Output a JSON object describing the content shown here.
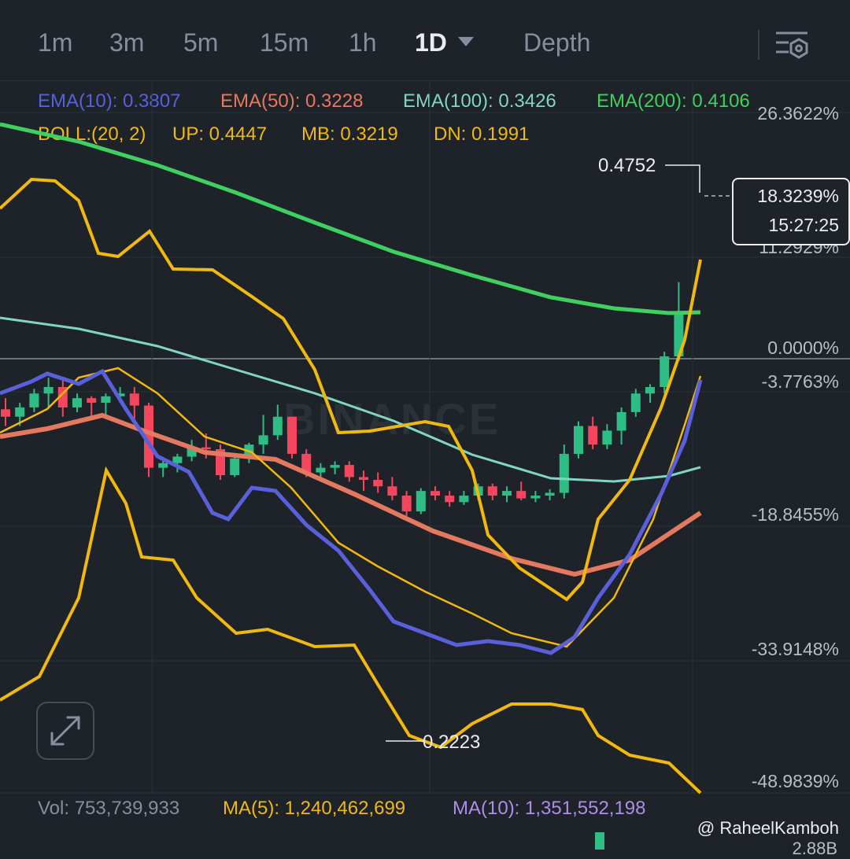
{
  "timeframes": [
    {
      "label": "1m",
      "active": false
    },
    {
      "label": "3m",
      "active": false
    },
    {
      "label": "5m",
      "active": false
    },
    {
      "label": "15m",
      "active": false
    },
    {
      "label": "1h",
      "active": false
    },
    {
      "label": "1D",
      "active": true
    },
    {
      "label": "Depth",
      "active": false
    }
  ],
  "indicators": {
    "ema10": {
      "label": "EMA(10): 0.3807",
      "color": "#5a5fdc"
    },
    "ema50": {
      "label": "EMA(50): 0.3228",
      "color": "#e4795f"
    },
    "ema100": {
      "label": "EMA(100): 0.3426",
      "color": "#7fd6c3"
    },
    "ema200": {
      "label": "EMA(200): 0.4106",
      "color": "#3ed15f"
    },
    "boll": {
      "name": "BOLL:(20, 2)",
      "up": "UP: 0.4447",
      "mb": "MB: 0.3219",
      "dn": "DN: 0.1991",
      "color": "#f0b90b"
    }
  },
  "price_box": {
    "change": "18.3239%",
    "countdown": "15:27:25"
  },
  "watermark": "BINANCE",
  "volume": {
    "vol": "Vol: 753,739,933",
    "ma5": "MA(5): 1,240,462,699",
    "ma10": "MA(10): 1,351,552,198",
    "axis_partial": "2.88B"
  },
  "brand": "@ RaheelKamboh",
  "chart_data": {
    "type": "candlestick",
    "y_axis_ticks": [
      "26.3622%",
      "11.2929%",
      "0.0000%",
      "-3.7763%",
      "-18.8455%",
      "-33.9148%",
      "-48.9839%"
    ],
    "annotations": {
      "high": "0.4752",
      "low": "0.2223"
    },
    "colors": {
      "up": "#2ebd85",
      "down": "#f6465d"
    },
    "candles": [
      [
        0.338,
        0.35,
        0.32,
        0.33
      ],
      [
        0.33,
        0.345,
        0.32,
        0.34
      ],
      [
        0.34,
        0.36,
        0.335,
        0.355
      ],
      [
        0.355,
        0.372,
        0.34,
        0.362
      ],
      [
        0.362,
        0.372,
        0.33,
        0.34
      ],
      [
        0.34,
        0.355,
        0.335,
        0.35
      ],
      [
        0.35,
        0.352,
        0.33,
        0.345
      ],
      [
        0.345,
        0.355,
        0.33,
        0.352
      ],
      [
        0.352,
        0.362,
        0.345,
        0.355
      ],
      [
        0.355,
        0.362,
        0.32,
        0.342
      ],
      [
        0.342,
        0.345,
        0.265,
        0.275
      ],
      [
        0.275,
        0.282,
        0.265,
        0.28
      ],
      [
        0.28,
        0.29,
        0.27,
        0.287
      ],
      [
        0.287,
        0.305,
        0.282,
        0.297
      ],
      [
        0.297,
        0.312,
        0.285,
        0.295
      ],
      [
        0.295,
        0.3,
        0.262,
        0.267
      ],
      [
        0.267,
        0.29,
        0.265,
        0.285
      ],
      [
        0.285,
        0.302,
        0.28,
        0.3
      ],
      [
        0.3,
        0.332,
        0.29,
        0.31
      ],
      [
        0.31,
        0.343,
        0.305,
        0.33
      ],
      [
        0.33,
        0.33,
        0.285,
        0.29
      ],
      [
        0.29,
        0.295,
        0.265,
        0.27
      ],
      [
        0.27,
        0.28,
        0.26,
        0.275
      ],
      [
        0.275,
        0.282,
        0.268,
        0.278
      ],
      [
        0.278,
        0.282,
        0.26,
        0.265
      ],
      [
        0.265,
        0.272,
        0.25,
        0.262
      ],
      [
        0.262,
        0.27,
        0.248,
        0.255
      ],
      [
        0.255,
        0.265,
        0.24,
        0.245
      ],
      [
        0.245,
        0.25,
        0.223,
        0.228
      ],
      [
        0.228,
        0.253,
        0.225,
        0.25
      ],
      [
        0.25,
        0.255,
        0.24,
        0.245
      ],
      [
        0.245,
        0.25,
        0.233,
        0.238
      ],
      [
        0.238,
        0.25,
        0.235,
        0.245
      ],
      [
        0.245,
        0.258,
        0.24,
        0.255
      ],
      [
        0.255,
        0.258,
        0.24,
        0.245
      ],
      [
        0.245,
        0.255,
        0.238,
        0.25
      ],
      [
        0.25,
        0.26,
        0.24,
        0.242
      ],
      [
        0.242,
        0.25,
        0.238,
        0.245
      ],
      [
        0.245,
        0.252,
        0.24,
        0.248
      ],
      [
        0.248,
        0.3,
        0.242,
        0.29
      ],
      [
        0.29,
        0.325,
        0.285,
        0.32
      ],
      [
        0.32,
        0.33,
        0.295,
        0.3
      ],
      [
        0.3,
        0.322,
        0.295,
        0.315
      ],
      [
        0.315,
        0.34,
        0.3,
        0.335
      ],
      [
        0.335,
        0.36,
        0.33,
        0.355
      ],
      [
        0.355,
        0.365,
        0.345,
        0.362
      ],
      [
        0.362,
        0.4,
        0.355,
        0.395
      ],
      [
        0.395,
        0.475,
        0.39,
        0.44
      ]
    ]
  }
}
